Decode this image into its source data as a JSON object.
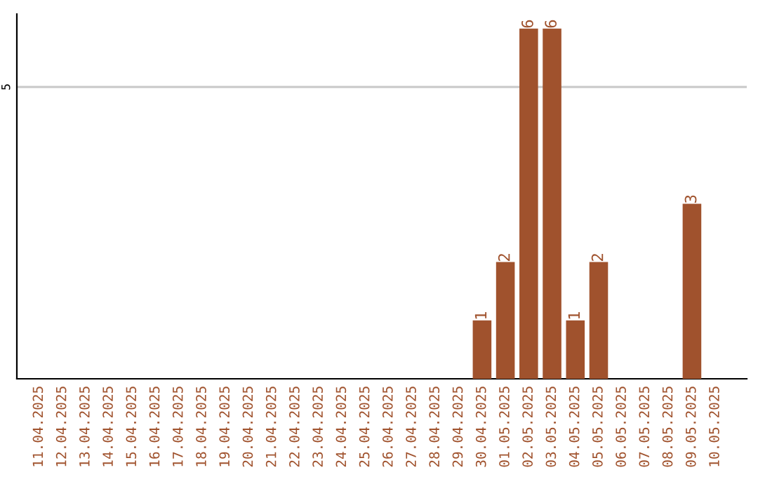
{
  "chart_data": {
    "type": "bar",
    "categories": [
      "11.04.2025",
      "12.04.2025",
      "13.04.2025",
      "14.04.2025",
      "15.04.2025",
      "16.04.2025",
      "17.04.2025",
      "18.04.2025",
      "19.04.2025",
      "20.04.2025",
      "21.04.2025",
      "22.04.2025",
      "23.04.2025",
      "24.04.2025",
      "25.04.2025",
      "26.04.2025",
      "27.04.2025",
      "28.04.2025",
      "29.04.2025",
      "30.04.2025",
      "01.05.2025",
      "02.05.2025",
      "03.05.2025",
      "04.05.2025",
      "05.05.2025",
      "06.05.2025",
      "07.05.2025",
      "08.05.2025",
      "09.05.2025",
      "10.05.2025"
    ],
    "values": [
      null,
      null,
      null,
      null,
      null,
      null,
      null,
      null,
      null,
      null,
      null,
      null,
      null,
      null,
      null,
      null,
      null,
      null,
      null,
      1,
      2,
      6,
      6,
      1,
      2,
      null,
      null,
      null,
      3,
      null
    ],
    "data_labels": true,
    "color": "#a0522d",
    "ylim": [
      0,
      6.25
    ],
    "ref_lines": [
      {
        "axis": "y",
        "value": 5,
        "label": "5",
        "color": "#c8c8c8"
      }
    ]
  }
}
